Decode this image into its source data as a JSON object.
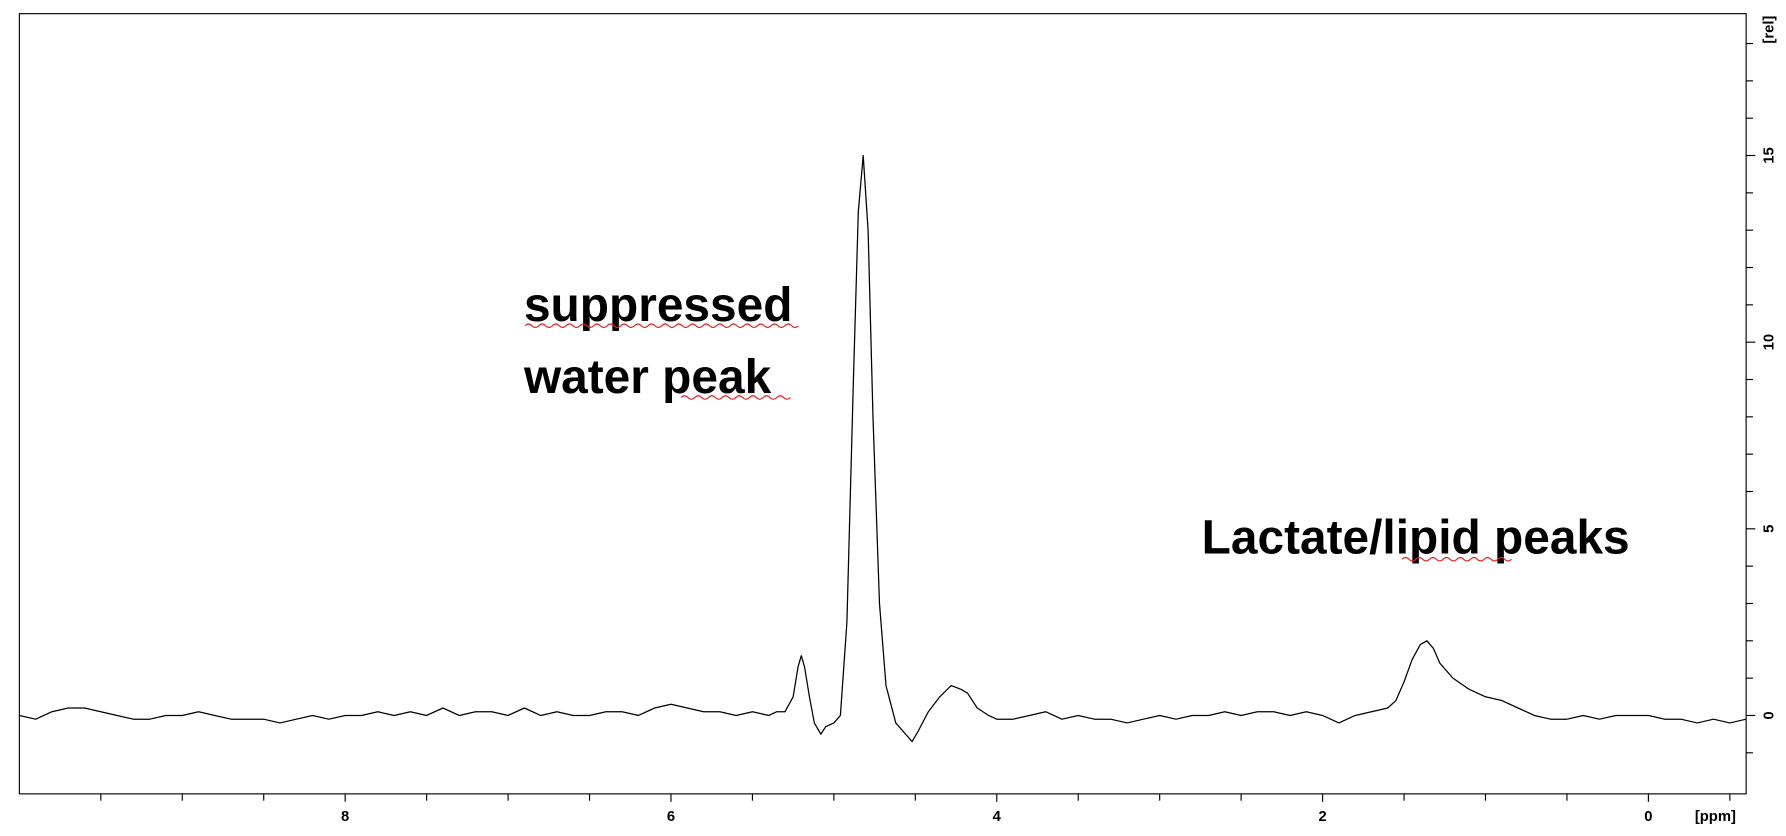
{
  "chart_data": {
    "type": "line",
    "annotations": [
      "suppressed",
      "water peak",
      "Lactate/lipid peaks"
    ],
    "xlabel": "[ppm]",
    "ylabel": "[rel]",
    "color": "#000000",
    "x": [
      10.0,
      9.9,
      9.8,
      9.7,
      9.6,
      9.5,
      9.4,
      9.3,
      9.2,
      9.1,
      9.0,
      8.9,
      8.8,
      8.7,
      8.6,
      8.5,
      8.4,
      8.3,
      8.2,
      8.1,
      8.0,
      7.9,
      7.8,
      7.7,
      7.6,
      7.5,
      7.4,
      7.3,
      7.2,
      7.1,
      7.0,
      6.9,
      6.8,
      6.7,
      6.6,
      6.5,
      6.4,
      6.3,
      6.2,
      6.1,
      6.0,
      5.9,
      5.8,
      5.7,
      5.6,
      5.5,
      5.4,
      5.35,
      5.3,
      5.25,
      5.22,
      5.2,
      5.18,
      5.15,
      5.12,
      5.08,
      5.05,
      5.0,
      4.96,
      4.92,
      4.88,
      4.85,
      4.82,
      4.79,
      4.76,
      4.72,
      4.68,
      4.62,
      4.56,
      4.52,
      4.48,
      4.42,
      4.35,
      4.28,
      4.22,
      4.18,
      4.12,
      4.05,
      4.0,
      3.9,
      3.8,
      3.7,
      3.6,
      3.5,
      3.4,
      3.3,
      3.2,
      3.1,
      3.0,
      2.9,
      2.8,
      2.7,
      2.6,
      2.5,
      2.4,
      2.3,
      2.2,
      2.1,
      2.0,
      1.9,
      1.8,
      1.7,
      1.6,
      1.55,
      1.5,
      1.45,
      1.4,
      1.36,
      1.32,
      1.28,
      1.2,
      1.1,
      1.0,
      0.9,
      0.8,
      0.7,
      0.6,
      0.5,
      0.4,
      0.3,
      0.2,
      0.1,
      0.0,
      -0.1,
      -0.2,
      -0.3,
      -0.4,
      -0.5,
      -0.6
    ],
    "values": [
      0.0,
      -0.1,
      0.1,
      0.2,
      0.2,
      0.1,
      0.0,
      -0.1,
      -0.1,
      0.0,
      0.0,
      0.1,
      0.0,
      -0.1,
      -0.1,
      -0.1,
      -0.2,
      -0.1,
      0.0,
      -0.1,
      0.0,
      0.0,
      0.1,
      0.0,
      0.1,
      0.0,
      0.2,
      0.0,
      0.1,
      0.1,
      0.0,
      0.2,
      0.0,
      0.1,
      0.0,
      0.0,
      0.1,
      0.1,
      0.0,
      0.2,
      0.3,
      0.2,
      0.1,
      0.1,
      0.0,
      0.1,
      0.0,
      0.1,
      0.1,
      0.5,
      1.3,
      1.6,
      1.3,
      0.5,
      -0.2,
      -0.5,
      -0.3,
      -0.2,
      0.0,
      2.5,
      9.0,
      13.5,
      15.0,
      13.0,
      8.0,
      3.0,
      0.8,
      -0.2,
      -0.5,
      -0.7,
      -0.4,
      0.1,
      0.5,
      0.8,
      0.7,
      0.6,
      0.2,
      0.0,
      -0.1,
      -0.1,
      0.0,
      0.1,
      -0.1,
      0.0,
      -0.1,
      -0.1,
      -0.2,
      -0.1,
      0.0,
      -0.1,
      0.0,
      0.0,
      0.1,
      0.0,
      0.1,
      0.1,
      0.0,
      0.1,
      0.0,
      -0.2,
      0.0,
      0.1,
      0.2,
      0.4,
      0.9,
      1.5,
      1.9,
      2.0,
      1.8,
      1.4,
      1.0,
      0.7,
      0.5,
      0.4,
      0.2,
      0.0,
      -0.1,
      -0.1,
      0.0,
      -0.1,
      0.0,
      0.0,
      0.0,
      -0.1,
      -0.1,
      -0.2,
      -0.1,
      -0.2,
      -0.1
    ],
    "xlim": [
      10.0,
      -0.6
    ],
    "ylim": [
      -2.1,
      18.8
    ],
    "xticks": [
      8,
      6,
      4,
      2,
      0
    ],
    "xminorticks": [
      9.5,
      9.0,
      8.5,
      7.5,
      7.0,
      6.5,
      5.5,
      5.0,
      4.5,
      3.5,
      3.0,
      2.5,
      1.5,
      1.0,
      0.5,
      -0.5
    ],
    "yticks": [
      0,
      5,
      10,
      15
    ],
    "yminorticks": [
      -1,
      1,
      2,
      3,
      4,
      6,
      7,
      8,
      9,
      11,
      12,
      13,
      14,
      16,
      17,
      18
    ]
  }
}
